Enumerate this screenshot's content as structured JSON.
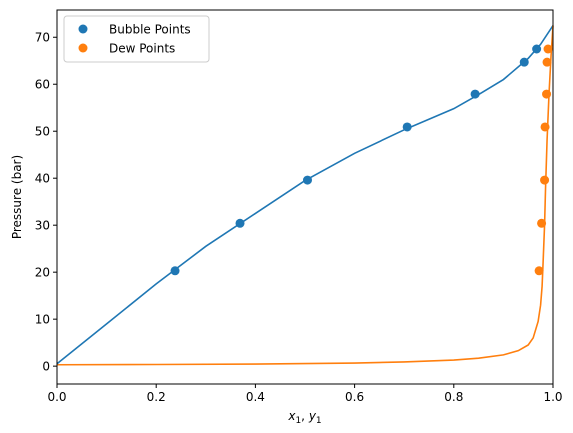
{
  "chart_data": {
    "type": "scatter",
    "title": "",
    "xlabel_main": "x",
    "xlabel_sub1": "1",
    "xlabel_sep": ", ",
    "xlabel_main2": "y",
    "xlabel_sub2": "1",
    "ylabel": "Pressure (bar)",
    "xlim": [
      0.0,
      1.0
    ],
    "ylim": [
      -3.8,
      75.8
    ],
    "xticks": [
      "0.0",
      "0.2",
      "0.4",
      "0.6",
      "0.8",
      "1.0"
    ],
    "yticks": [
      "0",
      "10",
      "20",
      "30",
      "40",
      "50",
      "60",
      "70"
    ],
    "grid": false,
    "legend_position": "top-left",
    "series": [
      {
        "name": "Bubble Points",
        "kind": "scatter",
        "color": "#1f77b4",
        "x": [
          0.238,
          0.369,
          0.505,
          0.706,
          0.843,
          0.942,
          0.967
        ],
        "y": [
          20.3,
          30.4,
          39.6,
          50.9,
          57.9,
          64.7,
          67.5
        ]
      },
      {
        "name": "Dew Points",
        "kind": "scatter",
        "color": "#ff7f0e",
        "x": [
          0.972,
          0.977,
          0.983,
          0.984,
          0.987,
          0.988,
          0.99
        ],
        "y": [
          20.3,
          30.4,
          39.6,
          50.9,
          57.9,
          64.7,
          67.5
        ]
      },
      {
        "kind": "line",
        "color": "#1f77b4",
        "x": [
          0.0,
          0.1,
          0.2,
          0.3,
          0.4,
          0.5,
          0.6,
          0.7,
          0.8,
          0.85,
          0.9,
          0.95,
          0.975,
          1.0
        ],
        "y": [
          0.5,
          9.0,
          17.5,
          25.5,
          32.5,
          39.5,
          45.3,
          50.3,
          54.8,
          57.8,
          61.0,
          65.5,
          68.5,
          72.5
        ]
      },
      {
        "kind": "line",
        "color": "#ff7f0e",
        "x": [
          0.0,
          0.2,
          0.4,
          0.6,
          0.7,
          0.8,
          0.85,
          0.9,
          0.93,
          0.95,
          0.96,
          0.97,
          0.975,
          0.978,
          0.98,
          0.983,
          0.985,
          0.988,
          0.992,
          0.996,
          1.0
        ],
        "y": [
          0.3,
          0.35,
          0.45,
          0.65,
          0.9,
          1.3,
          1.7,
          2.4,
          3.3,
          4.5,
          6.0,
          9.5,
          13.0,
          17.0,
          22.0,
          30.0,
          38.0,
          48.0,
          58.0,
          66.0,
          72.5
        ]
      }
    ]
  }
}
